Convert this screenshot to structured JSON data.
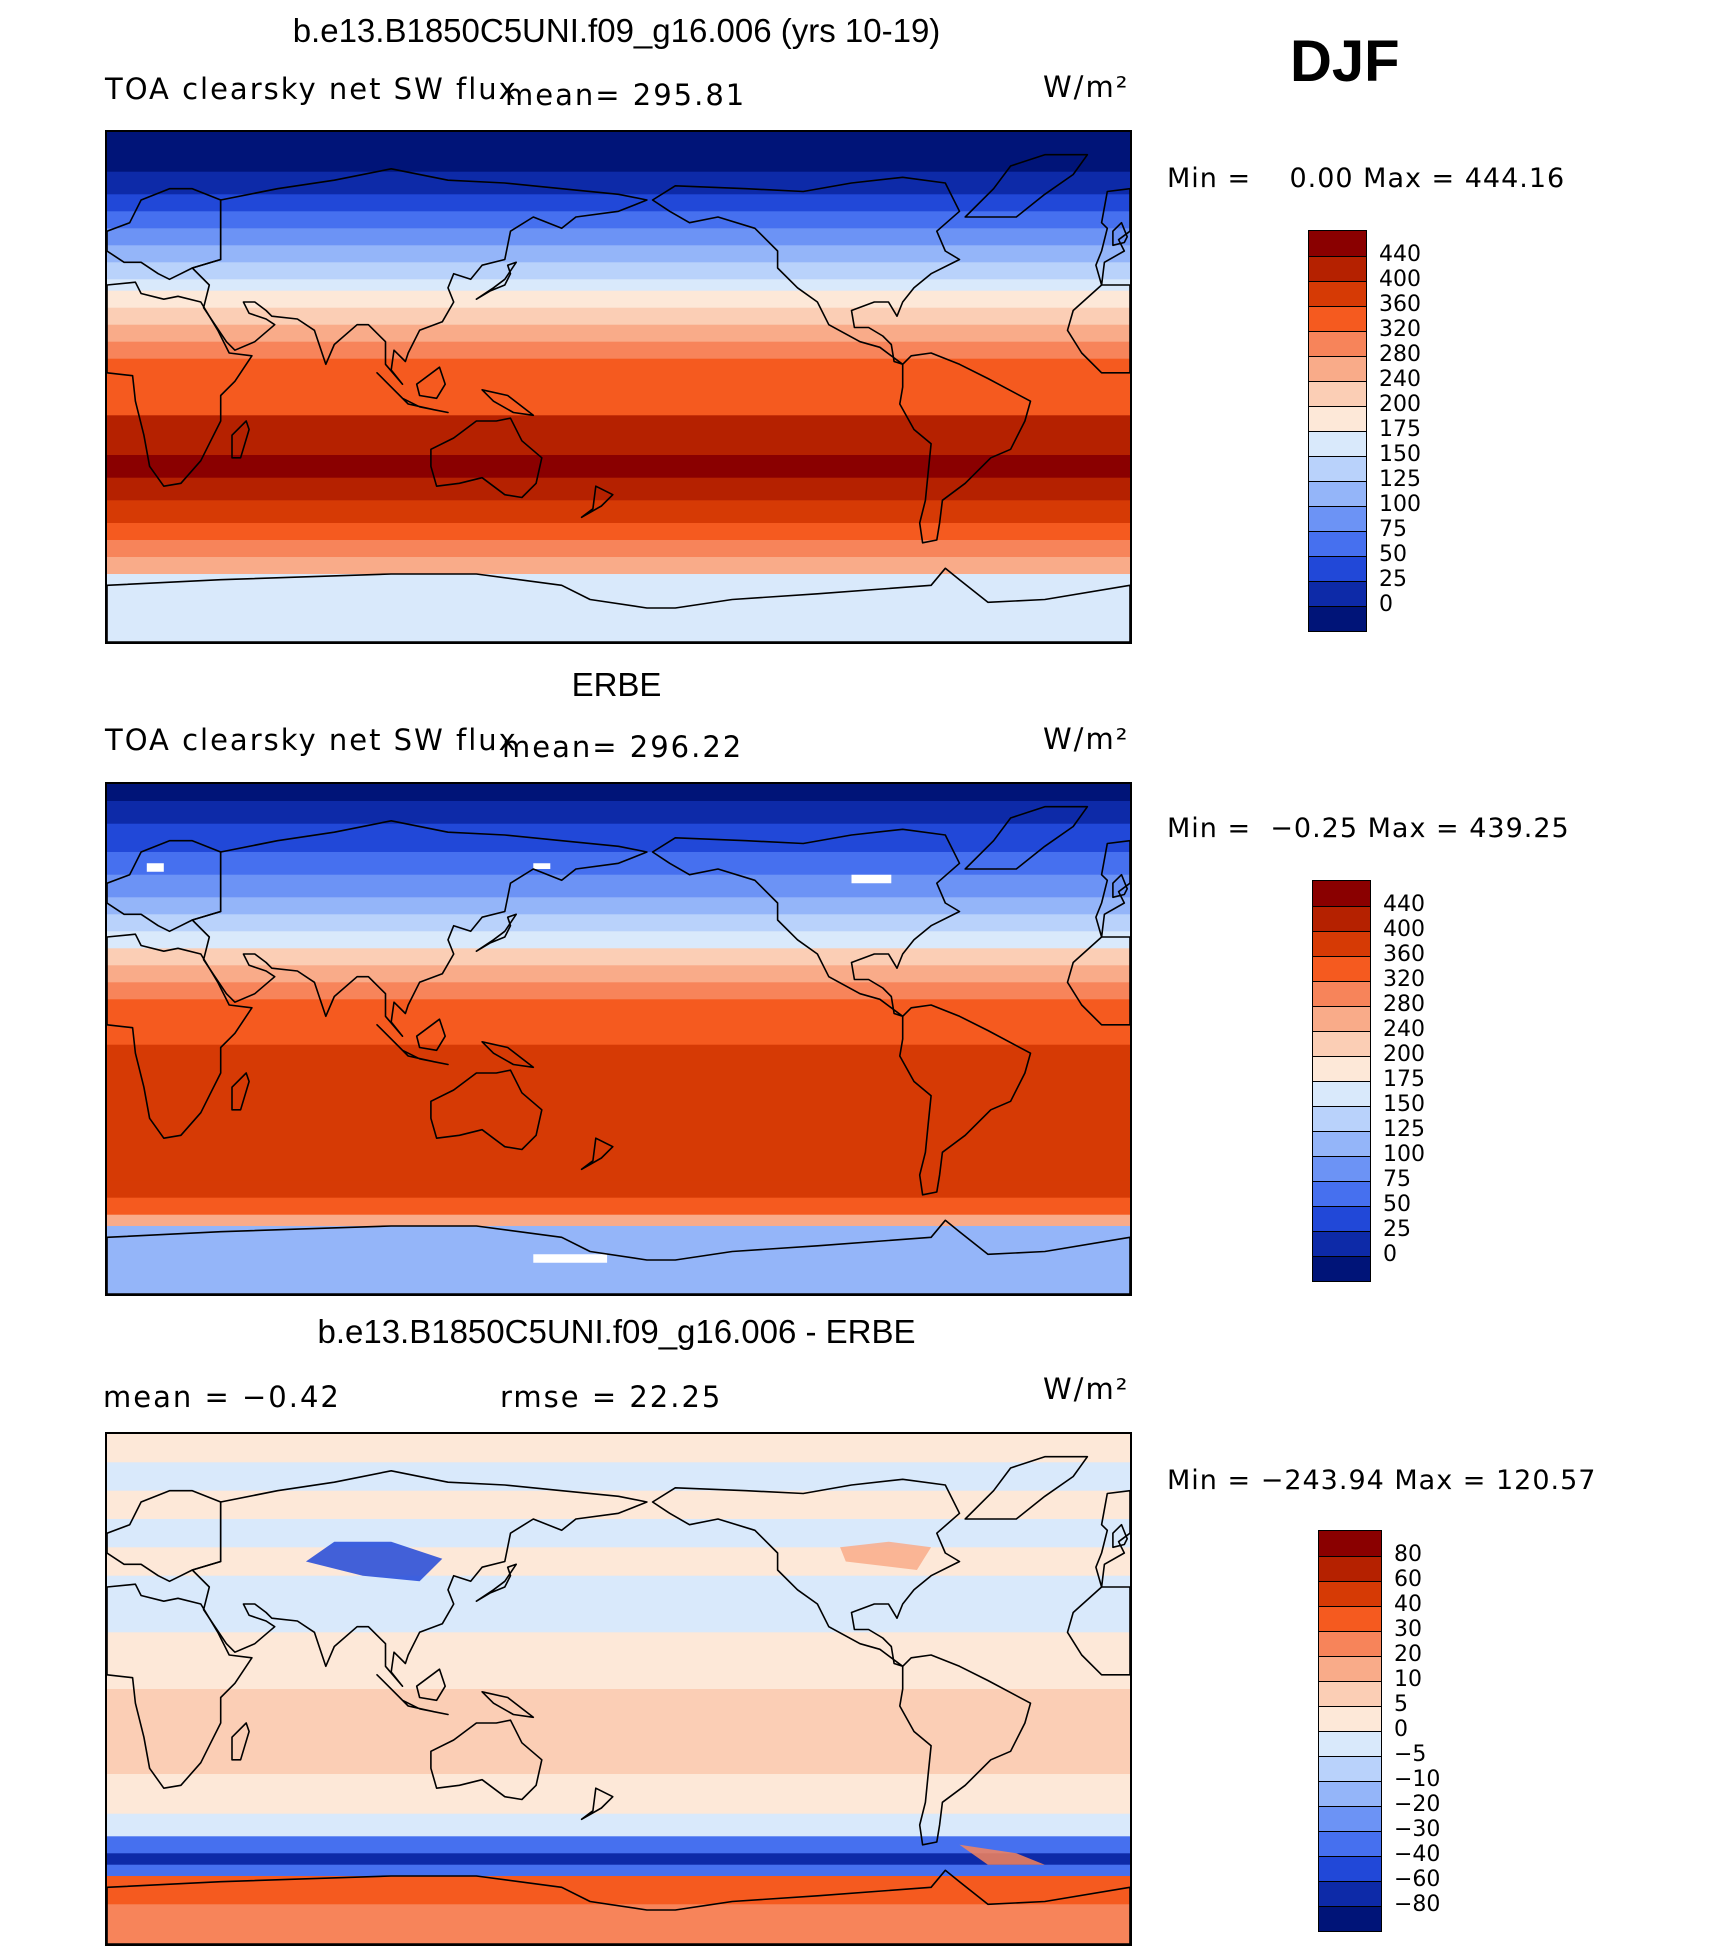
{
  "season": "DJF",
  "panels": [
    {
      "id": "model",
      "title": "b.e13.B1850C5UNI.f09_g16.006 (yrs 10-19)",
      "field": "TOA clearsky net SW flux",
      "stat_left": "mean= 295.81",
      "stat_right": "",
      "units": "W/m²",
      "minmax": "Min =    0.00 Max = 444.16",
      "map_type": "absolute",
      "colorbar": {
        "labels": [
          "440",
          "400",
          "360",
          "320",
          "280",
          "240",
          "200",
          "175",
          "150",
          "125",
          "100",
          "75",
          "50",
          "25",
          "0"
        ],
        "colors": [
          "#8a0000",
          "#b52100",
          "#d63a05",
          "#f55a1f",
          "#f7845a",
          "#f9ab89",
          "#fbceb5",
          "#fde8d8",
          "#d9e9fb",
          "#b9d2fb",
          "#94b5f9",
          "#6c93f5",
          "#4670ef",
          "#2148d8",
          "#0d2aa8",
          "#001478"
        ]
      }
    },
    {
      "id": "obs",
      "title": "ERBE",
      "field": "TOA clearsky net SW flux",
      "stat_left": "mean= 296.22",
      "stat_right": "",
      "units": "W/m²",
      "minmax": "Min =  −0.25 Max = 439.25",
      "map_type": "absolute",
      "colorbar": {
        "labels": [
          "440",
          "400",
          "360",
          "320",
          "280",
          "240",
          "200",
          "175",
          "150",
          "125",
          "100",
          "75",
          "50",
          "25",
          "0"
        ],
        "colors": [
          "#8a0000",
          "#b52100",
          "#d63a05",
          "#f55a1f",
          "#f7845a",
          "#f9ab89",
          "#fbceb5",
          "#fde8d8",
          "#d9e9fb",
          "#b9d2fb",
          "#94b5f9",
          "#6c93f5",
          "#4670ef",
          "#2148d8",
          "#0d2aa8",
          "#001478"
        ]
      }
    },
    {
      "id": "diff",
      "title": "b.e13.B1850C5UNI.f09_g16.006 - ERBE",
      "field": "mean =   −0.42",
      "stat_left": "",
      "stat_right": "rmse =   22.25",
      "units": "W/m²",
      "minmax": "Min = −243.94 Max = 120.57",
      "map_type": "difference",
      "colorbar": {
        "labels": [
          "80",
          "60",
          "40",
          "30",
          "20",
          "10",
          "5",
          "0",
          "−5",
          "−10",
          "−20",
          "−30",
          "−40",
          "−60",
          "−80"
        ],
        "colors": [
          "#8a0000",
          "#b52100",
          "#d63a05",
          "#f55a1f",
          "#f7845a",
          "#f9ab89",
          "#fbceb5",
          "#fde8d8",
          "#d9e9fb",
          "#b9d2fb",
          "#94b5f9",
          "#6c93f5",
          "#4670ef",
          "#2148d8",
          "#0d2aa8",
          "#001478"
        ]
      }
    }
  ]
}
